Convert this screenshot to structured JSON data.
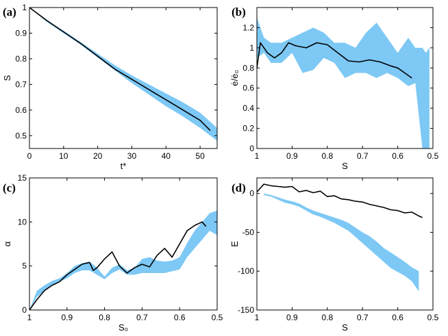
{
  "chart_data": [
    {
      "type": "line",
      "panel": "(a)",
      "xlabel": "t*",
      "ylabel": "S",
      "xlim": [
        0,
        55
      ],
      "ylim": [
        0.45,
        1.0
      ],
      "xticks": [
        0,
        10,
        20,
        30,
        40,
        50
      ],
      "yticks": [
        0.5,
        0.6,
        0.7,
        0.8,
        0.9,
        1.0
      ],
      "xtick_labels": [
        "0",
        "10",
        "20",
        "30",
        "40",
        "50"
      ],
      "ytick_labels": [
        "0.5",
        "0.6",
        "0.7",
        "0.8",
        "0.9",
        "1"
      ],
      "series": [
        {
          "name": "mean",
          "color": "#000000",
          "style": "line",
          "x": [
            0,
            5,
            10,
            15,
            20,
            25,
            30,
            35,
            40,
            45,
            50,
            53
          ],
          "y": [
            1.0,
            0.95,
            0.905,
            0.86,
            0.81,
            0.76,
            0.72,
            0.68,
            0.64,
            0.6,
            0.56,
            0.52
          ]
        },
        {
          "name": "range",
          "color": "#7dc8f5",
          "style": "band",
          "x": [
            0,
            5,
            10,
            15,
            20,
            25,
            30,
            35,
            40,
            45,
            50,
            55
          ],
          "y_low": [
            1.0,
            0.945,
            0.9,
            0.855,
            0.805,
            0.755,
            0.705,
            0.66,
            0.615,
            0.575,
            0.53,
            0.48
          ],
          "y_high": [
            1.0,
            0.95,
            0.91,
            0.865,
            0.82,
            0.775,
            0.735,
            0.7,
            0.665,
            0.63,
            0.59,
            0.53
          ]
        }
      ]
    },
    {
      "type": "line",
      "panel": "(b)",
      "xlabel": "S",
      "ylabel": "ė/ė₀",
      "xlim": [
        1.0,
        0.5
      ],
      "ylim": [
        0,
        1.4
      ],
      "xticks": [
        1.0,
        0.9,
        0.8,
        0.7,
        0.6,
        0.5
      ],
      "yticks": [
        0,
        0.2,
        0.4,
        0.6,
        0.8,
        1.0,
        1.2
      ],
      "xtick_labels": [
        "1",
        "0.9",
        "0.8",
        "0.7",
        "0.6",
        "0.5"
      ],
      "ytick_labels": [
        "0",
        "0.2",
        "0.4",
        "0.6",
        "0.8",
        "1",
        "1.2"
      ],
      "series": [
        {
          "name": "mean",
          "color": "#000000",
          "style": "line",
          "x": [
            1.0,
            0.99,
            0.97,
            0.95,
            0.93,
            0.91,
            0.89,
            0.86,
            0.83,
            0.8,
            0.77,
            0.74,
            0.71,
            0.68,
            0.65,
            0.62,
            0.6,
            0.58,
            0.56
          ],
          "y": [
            0.8,
            1.05,
            0.95,
            0.9,
            0.95,
            1.05,
            1.02,
            1.0,
            1.05,
            1.03,
            0.95,
            0.87,
            0.86,
            0.88,
            0.86,
            0.82,
            0.8,
            0.75,
            0.7
          ]
        },
        {
          "name": "range",
          "color": "#7dc8f5",
          "style": "band",
          "x": [
            1.0,
            0.98,
            0.96,
            0.93,
            0.9,
            0.87,
            0.84,
            0.81,
            0.78,
            0.75,
            0.72,
            0.69,
            0.66,
            0.63,
            0.6,
            0.57,
            0.55,
            0.53,
            0.52,
            0.51
          ],
          "y_low": [
            0.9,
            0.95,
            0.85,
            0.85,
            0.95,
            0.75,
            0.78,
            0.9,
            0.85,
            0.7,
            0.75,
            0.75,
            0.7,
            0.75,
            0.7,
            0.62,
            0.65,
            0.0,
            0.0,
            0.0
          ],
          "y_high": [
            1.3,
            1.1,
            1.05,
            1.05,
            1.1,
            1.15,
            1.2,
            1.15,
            1.05,
            1.05,
            1.0,
            1.15,
            1.25,
            1.1,
            0.95,
            1.1,
            1.0,
            1.0,
            0.95,
            1.0
          ]
        }
      ]
    },
    {
      "type": "line",
      "panel": "(c)",
      "xlabel": "S₀",
      "ylabel": "α",
      "xlim": [
        1.0,
        0.5
      ],
      "ylim": [
        0,
        15
      ],
      "xticks": [
        1.0,
        0.9,
        0.8,
        0.7,
        0.6,
        0.5
      ],
      "yticks": [
        0,
        5,
        10,
        15
      ],
      "xtick_labels": [
        "1",
        "0.9",
        "0.8",
        "0.7",
        "0.6",
        "0.5"
      ],
      "ytick_labels": [
        "0",
        "5",
        "10",
        "15"
      ],
      "series": [
        {
          "name": "mean",
          "color": "#000000",
          "style": "line",
          "x": [
            1.0,
            0.98,
            0.96,
            0.94,
            0.92,
            0.9,
            0.88,
            0.86,
            0.84,
            0.83,
            0.82,
            0.8,
            0.78,
            0.76,
            0.74,
            0.72,
            0.7,
            0.68,
            0.66,
            0.64,
            0.62,
            0.6,
            0.58,
            0.56,
            0.54,
            0.53
          ],
          "y": [
            0,
            1.2,
            2.2,
            2.8,
            3.2,
            4.0,
            4.6,
            5.2,
            5.4,
            4.5,
            4.8,
            5.8,
            6.6,
            5.0,
            4.2,
            4.8,
            5.2,
            4.9,
            6.2,
            7.0,
            6.0,
            7.5,
            9.0,
            9.6,
            10.0,
            9.5
          ]
        },
        {
          "name": "range",
          "color": "#7dc8f5",
          "style": "band",
          "x": [
            1.0,
            0.98,
            0.96,
            0.94,
            0.92,
            0.9,
            0.88,
            0.86,
            0.84,
            0.82,
            0.8,
            0.78,
            0.76,
            0.74,
            0.72,
            0.7,
            0.68,
            0.66,
            0.64,
            0.62,
            0.6,
            0.58,
            0.56,
            0.54,
            0.52,
            0.5
          ],
          "y_low": [
            0,
            1.5,
            2.2,
            2.8,
            3.2,
            3.6,
            4.2,
            4.5,
            4.5,
            4.0,
            3.5,
            4.2,
            4.6,
            4.0,
            4.0,
            4.2,
            4.2,
            4.2,
            4.2,
            4.4,
            4.6,
            6.0,
            7.0,
            8.0,
            9.0,
            8.5
          ],
          "y_high": [
            0,
            2.2,
            2.8,
            3.3,
            3.6,
            4.2,
            5.0,
            5.3,
            5.5,
            4.8,
            3.8,
            4.8,
            5.2,
            4.5,
            4.8,
            5.8,
            6.0,
            5.6,
            5.5,
            5.6,
            6.0,
            7.6,
            9.0,
            10.0,
            11.0,
            11.3
          ]
        }
      ]
    },
    {
      "type": "line",
      "panel": "(d)",
      "xlabel": "S",
      "ylabel": "E",
      "xlim": [
        1.0,
        0.5
      ],
      "ylim": [
        -150,
        20
      ],
      "xticks": [
        1.0,
        0.9,
        0.8,
        0.7,
        0.6,
        0.5
      ],
      "yticks": [
        -150,
        -100,
        -50,
        0
      ],
      "xtick_labels": [
        "1",
        "0.9",
        "0.8",
        "0.7",
        "0.6",
        "0.5"
      ],
      "ytick_labels": [
        "-150",
        "-100",
        "-50",
        "0"
      ],
      "series": [
        {
          "name": "mean",
          "color": "#000000",
          "style": "line",
          "x": [
            1.0,
            0.98,
            0.96,
            0.94,
            0.92,
            0.9,
            0.88,
            0.86,
            0.84,
            0.82,
            0.8,
            0.78,
            0.76,
            0.74,
            0.72,
            0.7,
            0.68,
            0.66,
            0.64,
            0.62,
            0.6,
            0.58,
            0.56,
            0.54,
            0.53
          ],
          "y": [
            2,
            12,
            10,
            9,
            8,
            9,
            2,
            4,
            1,
            3,
            -4,
            -3,
            -7,
            -8,
            -10,
            -11,
            -14,
            -16,
            -18,
            -21,
            -22,
            -25,
            -24,
            -29,
            -31
          ]
        },
        {
          "name": "range",
          "color": "#7dc8f5",
          "style": "band",
          "x": [
            0.98,
            0.96,
            0.94,
            0.92,
            0.9,
            0.88,
            0.86,
            0.84,
            0.82,
            0.8,
            0.78,
            0.76,
            0.74,
            0.72,
            0.7,
            0.68,
            0.66,
            0.64,
            0.62,
            0.6,
            0.58,
            0.56,
            0.54
          ],
          "y_low": [
            -2,
            -4,
            -8,
            -12,
            -14,
            -17,
            -22,
            -27,
            -30,
            -34,
            -38,
            -43,
            -48,
            -56,
            -64,
            -72,
            -80,
            -88,
            -96,
            -101,
            -106,
            -113,
            -126
          ],
          "y_high": [
            0,
            -2,
            -5,
            -8,
            -10,
            -13,
            -18,
            -22,
            -25,
            -28,
            -31,
            -34,
            -38,
            -44,
            -50,
            -55,
            -62,
            -70,
            -76,
            -82,
            -88,
            -95,
            -100
          ]
        }
      ]
    }
  ]
}
